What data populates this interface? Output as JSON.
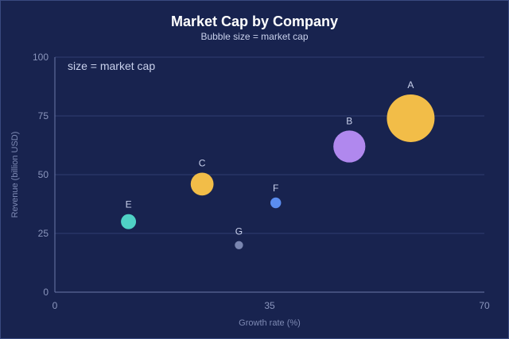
{
  "chart_data": {
    "type": "scatter",
    "title": "Market Cap by Company",
    "subtitle": "Bubble size = market cap",
    "xlabel": "Growth rate (%)",
    "ylabel": "Revenue (billion USD)",
    "xlim": [
      0,
      70
    ],
    "ylim": [
      0,
      100
    ],
    "xticks": [
      0,
      35,
      70
    ],
    "yticks": [
      0,
      25,
      50,
      75,
      100
    ],
    "annotation": "size = market cap",
    "grid": "horizontal",
    "points": [
      {
        "label": "A",
        "x": 58,
        "y": 74,
        "size": 100,
        "color": "#f2bd48"
      },
      {
        "label": "B",
        "x": 48,
        "y": 62,
        "size": 45,
        "color": "#b088ee"
      },
      {
        "label": "C",
        "x": 24,
        "y": 46,
        "size": 23,
        "color": "#f2bd48"
      },
      {
        "label": "E",
        "x": 12,
        "y": 30,
        "size": 10,
        "color": "#4fd1c5"
      },
      {
        "label": "F",
        "x": 36,
        "y": 38,
        "size": 5,
        "color": "#5b8def"
      },
      {
        "label": "G",
        "x": 30,
        "y": 20,
        "size": 3,
        "color": "#7a86b0"
      }
    ]
  }
}
